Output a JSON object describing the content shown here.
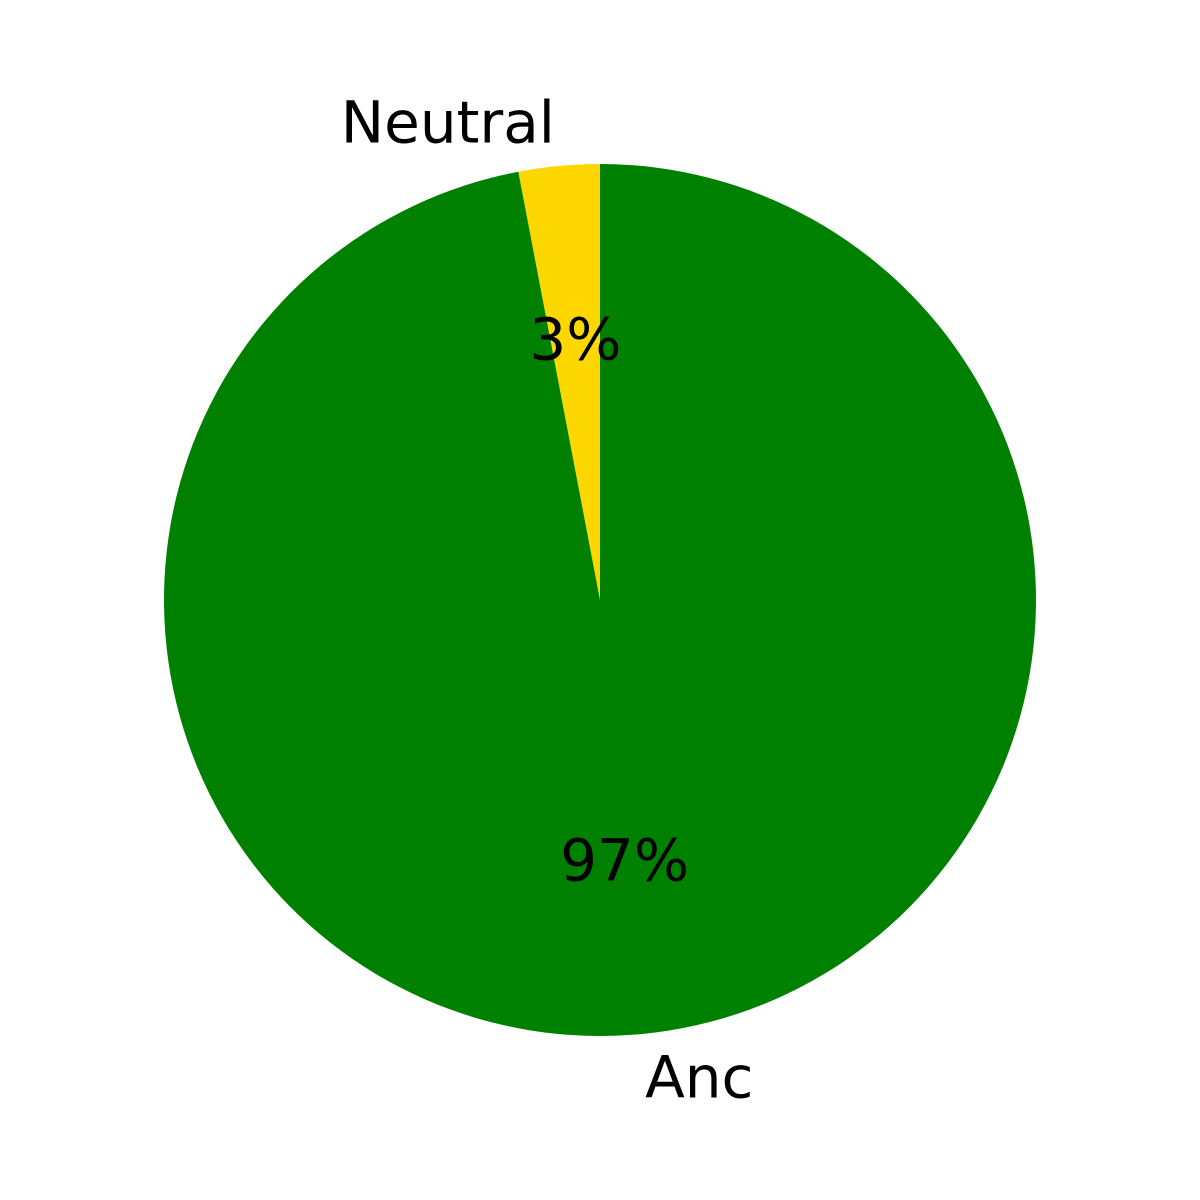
{
  "chart_data": {
    "type": "pie",
    "categories": [
      "Neutral",
      "Anc"
    ],
    "values": [
      3,
      97
    ],
    "percent_labels": [
      "3%",
      "97%"
    ],
    "colors": [
      "#ffd700",
      "#008000"
    ],
    "start_angle": "top, counter-clockwise",
    "title": "",
    "legend": "none"
  }
}
